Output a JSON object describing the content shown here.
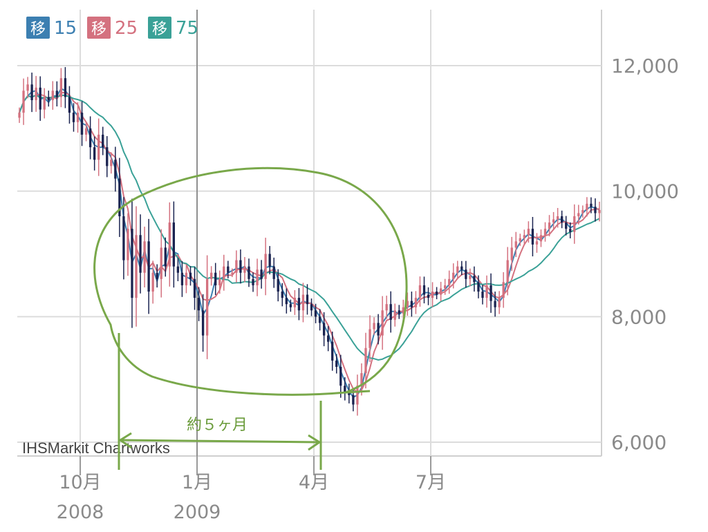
{
  "chart_data": {
    "type": "candlestick",
    "y_axis": {
      "range": [
        6000,
        12600
      ],
      "ticks": [
        "12,000",
        "10,000",
        "8,000",
        "6,000"
      ],
      "tick_values": [
        12000,
        10000,
        8000,
        6000
      ],
      "position": "right"
    },
    "x_axis": {
      "labels": [
        {
          "month": "10月",
          "year": "2008",
          "week": 7
        },
        {
          "month": "1月",
          "year": "2009",
          "week": 20
        },
        {
          "month": "4月",
          "year": "",
          "week": 33
        },
        {
          "month": "7月",
          "year": "",
          "week": 46
        }
      ],
      "grid_weeks": [
        7,
        20,
        33,
        46
      ]
    },
    "legend": [
      {
        "key": "移",
        "label": "15",
        "color": "#3c7fb1"
      },
      {
        "key": "移",
        "label": "25",
        "color": "#d4717f"
      },
      {
        "key": "移",
        "label": "75",
        "color": "#3aa197"
      }
    ],
    "grid": true,
    "credit": "IHSMarkit Chartworks",
    "annotation": {
      "text": "約５ヶ月",
      "color": "#6a9b3a"
    },
    "candle_colors": {
      "up": "#d4717f",
      "down": "#1a2350"
    },
    "closes": [
      11250,
      11600,
      11700,
      11450,
      11650,
      11300,
      11500,
      11450,
      11600,
      11500,
      11800,
      11500,
      11250,
      11100,
      11250,
      10900,
      11000,
      10700,
      10500,
      10900,
      10700,
      10400,
      10500,
      10200,
      9600,
      8900,
      9400,
      8300,
      9300,
      8700,
      9200,
      8400,
      8700,
      8600,
      9100,
      8800,
      9500,
      8800,
      8700,
      8500,
      8700,
      8600,
      8300,
      8100,
      7700,
      8600,
      8700,
      8500,
      8600,
      8800,
      8700,
      8700,
      8900,
      8700,
      8800,
      8600,
      8500,
      8750,
      8600,
      9000,
      8800,
      8600,
      8400,
      8300,
      8200,
      8150,
      8300,
      8100,
      8350,
      8200,
      8100,
      8000,
      7900,
      7700,
      7600,
      7300,
      7200,
      6900,
      6800,
      6750,
      6600,
      6900,
      7100,
      7500,
      7800,
      7900,
      7700,
      8100,
      8200,
      7950,
      8100,
      8050,
      8150,
      8250,
      8150,
      8300,
      8500,
      8350,
      8300,
      8400,
      8350,
      8450,
      8500,
      8600,
      8700,
      8800,
      8750,
      8600,
      8650,
      8550,
      8400,
      8300,
      8500,
      8250,
      8150,
      8300,
      8550,
      8900,
      9100,
      9200,
      9250,
      9300,
      9400,
      9150,
      9200,
      9300,
      9400,
      9500,
      9550,
      9600,
      9500,
      9400,
      9350,
      9600,
      9650,
      9700,
      9800,
      9750,
      9650,
      9700
    ]
  }
}
